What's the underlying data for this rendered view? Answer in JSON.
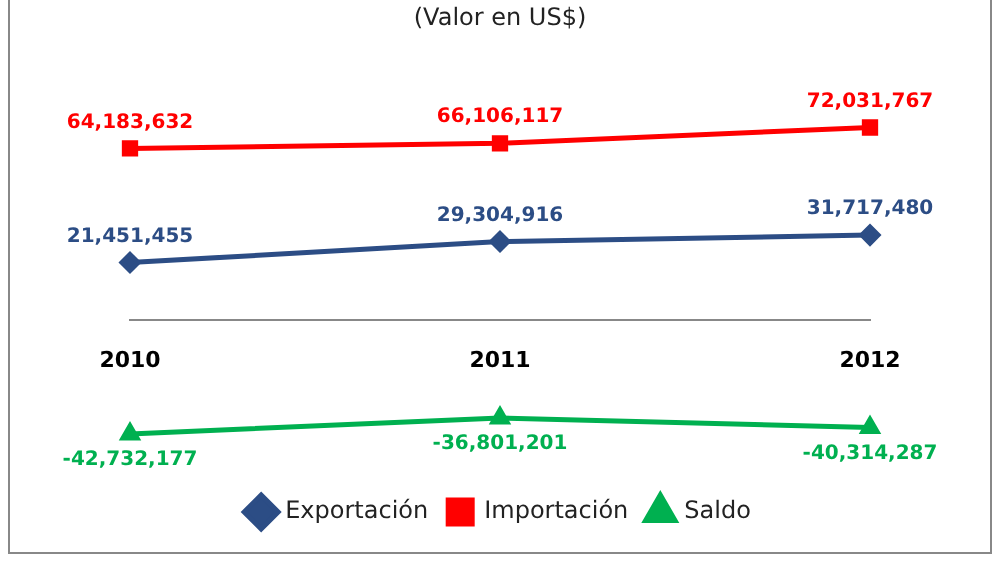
{
  "chart_data": {
    "type": "line",
    "title": "(Valor en US$)",
    "categories": [
      "2010",
      "2011",
      "2012"
    ],
    "series": [
      {
        "name": "Exportación",
        "color": "#2c4d85",
        "marker": "diamond",
        "values": [
          21451455,
          29304916,
          31717480
        ],
        "value_labels": [
          "21,451,455",
          "29,304,916",
          "31,717,480"
        ]
      },
      {
        "name": "Importación",
        "color": "#ff0000",
        "marker": "square",
        "values": [
          64183632,
          66106117,
          72031767
        ],
        "value_labels": [
          "64,183,632",
          "66,106,117",
          "72,031,767"
        ]
      },
      {
        "name": "Saldo",
        "color": "#00b050",
        "marker": "triangle",
        "values": [
          -42732177,
          -36801201,
          -40314287
        ],
        "value_labels": [
          "-42,732,177",
          "-36,801,201",
          "-40,314,287"
        ]
      }
    ],
    "legend": "bottom",
    "grid": false
  }
}
